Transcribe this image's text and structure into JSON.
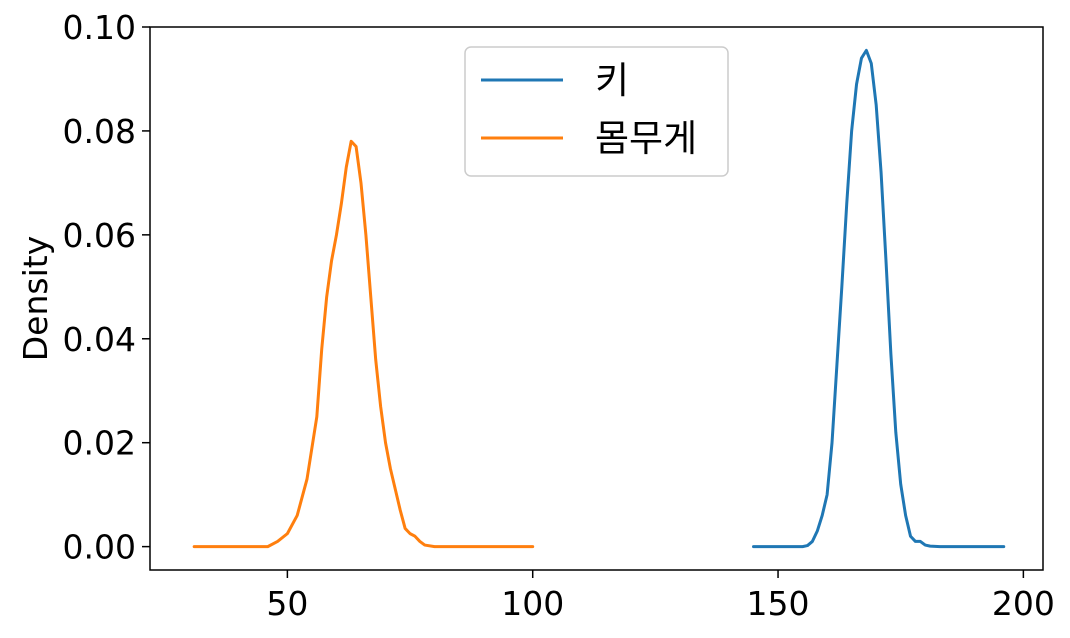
{
  "chart_data": {
    "type": "line",
    "title": "",
    "xlabel": "",
    "ylabel": "Density",
    "xlim": [
      22,
      204
    ],
    "ylim": [
      -0.0045,
      0.1
    ],
    "xticks": [
      50,
      100,
      150,
      200
    ],
    "xtick_labels": [
      "50",
      "100",
      "150",
      "200"
    ],
    "yticks": [
      0,
      0.02,
      0.04,
      0.06,
      0.08,
      0.1
    ],
    "ytick_labels": [
      "0.00",
      "0.02",
      "0.04",
      "0.06",
      "0.08",
      "0.10"
    ],
    "grid": false,
    "legend": {
      "position": "upper center"
    },
    "series": [
      {
        "name": "키",
        "color": "#1f77b4",
        "points": [
          [
            145,
            0
          ],
          [
            150,
            0
          ],
          [
            155,
            0
          ],
          [
            156,
            0.0002
          ],
          [
            157,
            0.001
          ],
          [
            158,
            0.003
          ],
          [
            159,
            0.006
          ],
          [
            160,
            0.01
          ],
          [
            161,
            0.02
          ],
          [
            162,
            0.035
          ],
          [
            163,
            0.05
          ],
          [
            164,
            0.066
          ],
          [
            165,
            0.08
          ],
          [
            166,
            0.089
          ],
          [
            167,
            0.094
          ],
          [
            168,
            0.0955
          ],
          [
            169,
            0.093
          ],
          [
            170,
            0.085
          ],
          [
            171,
            0.072
          ],
          [
            172,
            0.055
          ],
          [
            173,
            0.037
          ],
          [
            174,
            0.022
          ],
          [
            175,
            0.012
          ],
          [
            176,
            0.006
          ],
          [
            177,
            0.002
          ],
          [
            178,
            0.001
          ],
          [
            179,
            0.001
          ],
          [
            180,
            0.0003
          ],
          [
            181,
            0.0001
          ],
          [
            183,
            0
          ],
          [
            190,
            0
          ],
          [
            196,
            0
          ]
        ]
      },
      {
        "name": "몸무게",
        "color": "#ff7f0e",
        "points": [
          [
            31,
            0
          ],
          [
            40,
            0
          ],
          [
            46,
            0
          ],
          [
            48,
            0.001
          ],
          [
            50,
            0.0025
          ],
          [
            52,
            0.006
          ],
          [
            54,
            0.013
          ],
          [
            56,
            0.025
          ],
          [
            57,
            0.038
          ],
          [
            58,
            0.048
          ],
          [
            59,
            0.055
          ],
          [
            60,
            0.06
          ],
          [
            61,
            0.066
          ],
          [
            62,
            0.073
          ],
          [
            63,
            0.078
          ],
          [
            64,
            0.077
          ],
          [
            65,
            0.07
          ],
          [
            66,
            0.06
          ],
          [
            67,
            0.048
          ],
          [
            68,
            0.036
          ],
          [
            69,
            0.027
          ],
          [
            70,
            0.02
          ],
          [
            71,
            0.015
          ],
          [
            72,
            0.011
          ],
          [
            73,
            0.007
          ],
          [
            74,
            0.0035
          ],
          [
            75,
            0.0025
          ],
          [
            76,
            0.002
          ],
          [
            77,
            0.001
          ],
          [
            78,
            0.0003
          ],
          [
            80,
            0
          ],
          [
            90,
            0
          ],
          [
            100,
            0
          ]
        ]
      }
    ]
  }
}
